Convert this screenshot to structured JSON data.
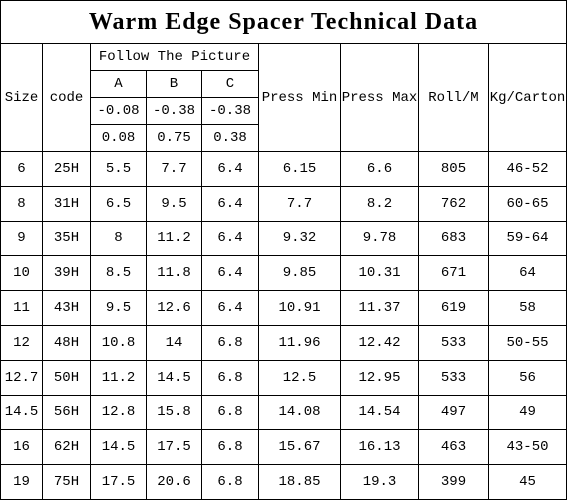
{
  "title": "Warm Edge Spacer Technical Data",
  "header": {
    "size": "Size",
    "code": "code",
    "follow": "Follow The Picture",
    "cols": [
      "A",
      "B",
      "C"
    ],
    "tol_minus": [
      "-0.08",
      "-0.38",
      "-0.38"
    ],
    "tol_plus": [
      "0.08",
      "0.75",
      "0.38"
    ],
    "press_min": "Press Min",
    "press_max": "Press Max",
    "roll": "Roll/M",
    "kg": "Kg/Carton"
  },
  "rows": [
    [
      "6",
      "25H",
      "5.5",
      "7.7",
      "6.4",
      "6.15",
      "6.6",
      "805",
      "46-52"
    ],
    [
      "8",
      "31H",
      "6.5",
      "9.5",
      "6.4",
      "7.7",
      "8.2",
      "762",
      "60-65"
    ],
    [
      "9",
      "35H",
      "8",
      "11.2",
      "6.4",
      "9.32",
      "9.78",
      "683",
      "59-64"
    ],
    [
      "10",
      "39H",
      "8.5",
      "11.8",
      "6.4",
      "9.85",
      "10.31",
      "671",
      "64"
    ],
    [
      "11",
      "43H",
      "9.5",
      "12.6",
      "6.4",
      "10.91",
      "11.37",
      "619",
      "58"
    ],
    [
      "12",
      "48H",
      "10.8",
      "14",
      "6.8",
      "11.96",
      "12.42",
      "533",
      "50-55"
    ],
    [
      "12.7",
      "50H",
      "11.2",
      "14.5",
      "6.8",
      "12.5",
      "12.95",
      "533",
      "56"
    ],
    [
      "14.5",
      "56H",
      "12.8",
      "15.8",
      "6.8",
      "14.08",
      "14.54",
      "497",
      "49"
    ],
    [
      "16",
      "62H",
      "14.5",
      "17.5",
      "6.8",
      "15.67",
      "16.13",
      "463",
      "43-50"
    ],
    [
      "19",
      "75H",
      "17.5",
      "20.6",
      "6.8",
      "18.85",
      "19.3",
      "399",
      "45"
    ]
  ]
}
